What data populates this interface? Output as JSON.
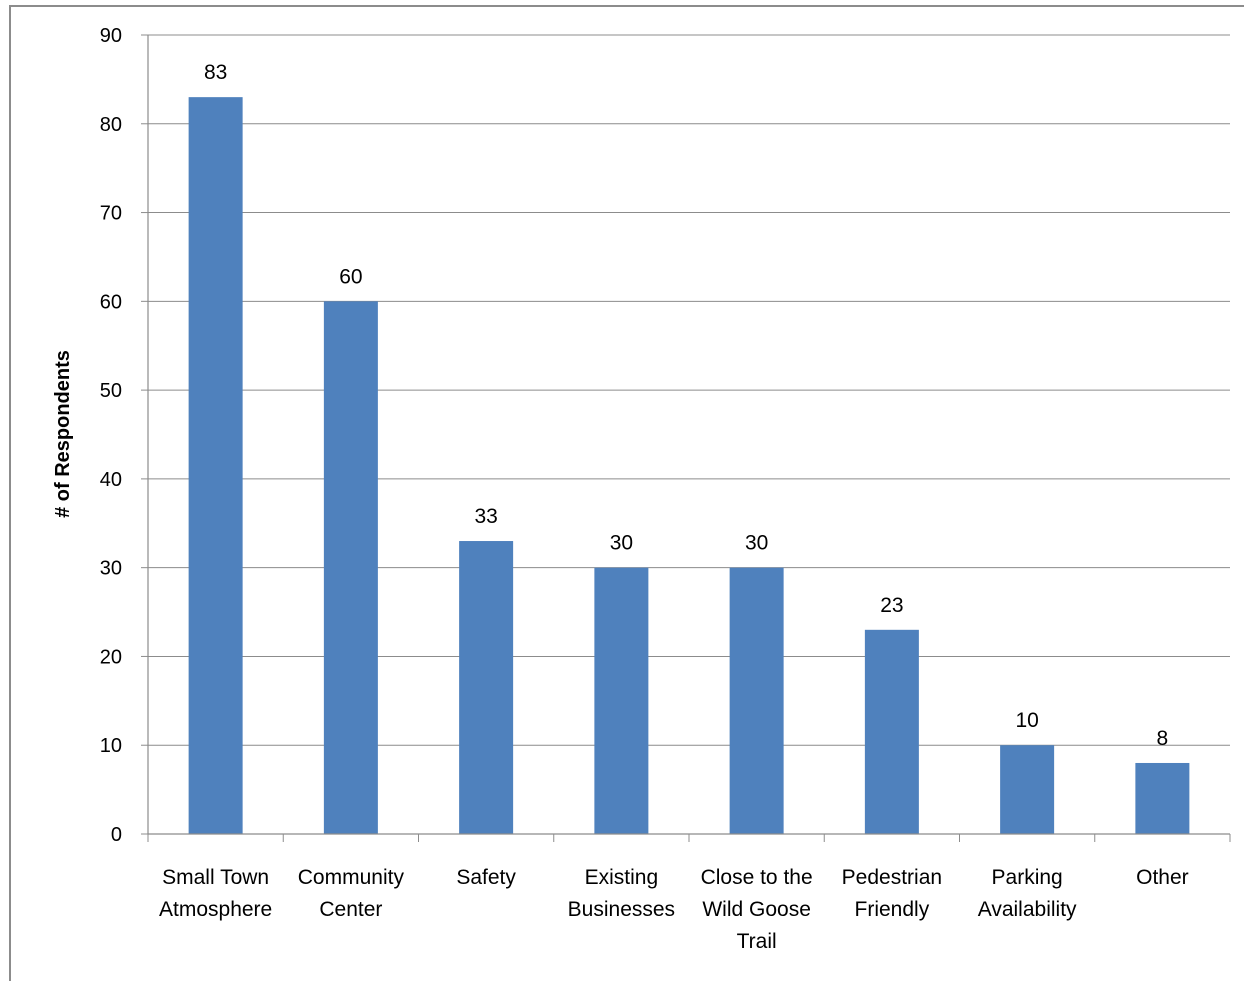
{
  "chart_data": {
    "type": "bar",
    "title": "",
    "xlabel": "",
    "ylabel": "# of Respondents",
    "ylim": [
      0,
      90
    ],
    "ytick_step": 10,
    "grid": true,
    "legend": "none",
    "bar_color": "#4f81bd",
    "categories": [
      [
        "Small Town",
        "Atmosphere"
      ],
      [
        "Community",
        "Center"
      ],
      [
        "Safety"
      ],
      [
        "Existing",
        "Businesses"
      ],
      [
        "Close to the",
        "Wild Goose",
        "Trail"
      ],
      [
        "Pedestrian",
        "Friendly"
      ],
      [
        "Parking",
        "Availability"
      ],
      [
        "Other"
      ]
    ],
    "values": [
      83,
      60,
      33,
      30,
      30,
      23,
      10,
      8
    ],
    "data_labels": [
      "83",
      "60",
      "33",
      "30",
      "30",
      "23",
      "10",
      "8"
    ]
  }
}
